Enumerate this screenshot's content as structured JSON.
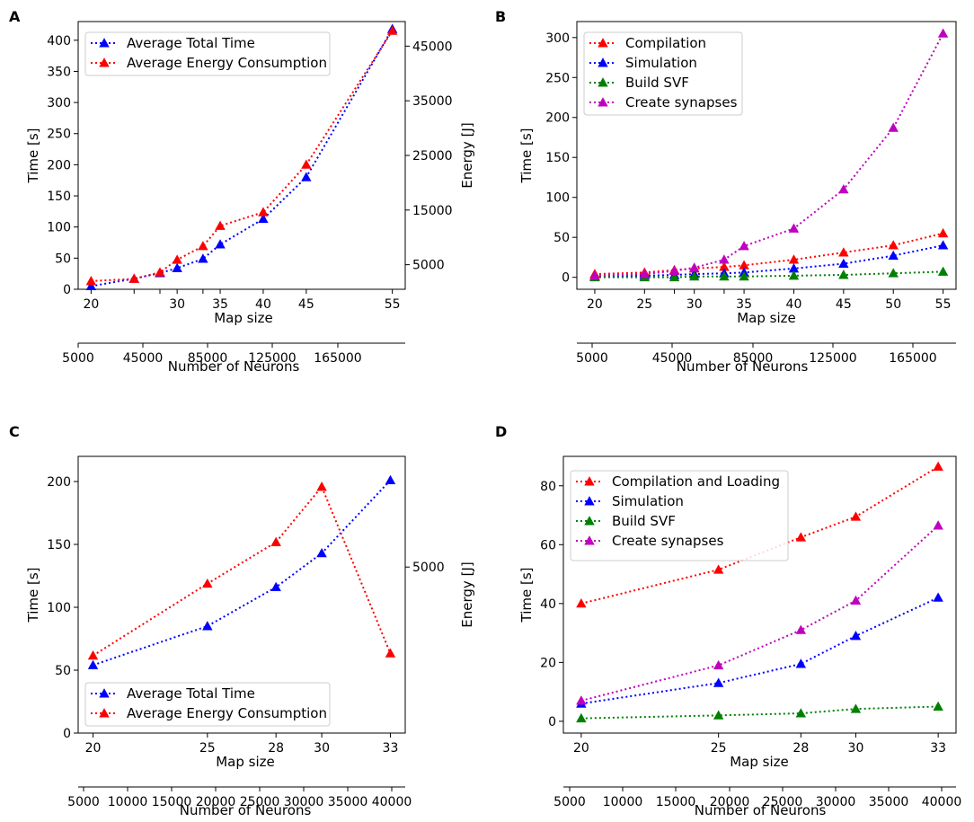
{
  "chart_data": [
    {
      "id": "A",
      "type": "line",
      "panel_label": "A",
      "xlabel": "Map size",
      "ylabel": "Time [s]",
      "y2label": "Energy [J]",
      "x2label": "Number of Neurons",
      "x": [
        20,
        25,
        28,
        30,
        33,
        35,
        40,
        45,
        55
      ],
      "xticks": [
        20,
        30,
        35,
        40,
        45,
        55
      ],
      "xlim": [
        18.5,
        56.5
      ],
      "ylim": [
        0,
        430
      ],
      "yticks": [
        0,
        50,
        100,
        150,
        200,
        250,
        300,
        350,
        400
      ],
      "y2lim": [
        500,
        49500
      ],
      "y2ticks": [
        5000,
        15000,
        25000,
        35000,
        45000
      ],
      "x2ticks": [
        "5000",
        "45000",
        "85000",
        "125000",
        "165000"
      ],
      "series": [
        {
          "name": "Average Total Time",
          "color": "#0000ff",
          "axis": "left",
          "values": [
            5,
            17,
            26,
            34,
            49,
            72,
            113,
            180,
            418
          ]
        },
        {
          "name": "Average Energy Consumption",
          "color": "#ff0000",
          "axis": "right",
          "values": [
            2000,
            2400,
            3600,
            5900,
            8400,
            12100,
            14600,
            23300,
            47800
          ]
        }
      ],
      "legend_loc": "upper-left"
    },
    {
      "id": "B",
      "type": "line",
      "panel_label": "B",
      "xlabel": "Map size",
      "ylabel": "Time [s]",
      "x2label": "Number of Neurons",
      "x": [
        20,
        25,
        28,
        30,
        33,
        35,
        40,
        45,
        50,
        55
      ],
      "xticks": [
        20,
        25,
        30,
        35,
        40,
        45,
        50,
        55
      ],
      "xlim": [
        18.2,
        56.3
      ],
      "ylim": [
        -15,
        320
      ],
      "yticks": [
        0,
        50,
        100,
        150,
        200,
        250,
        300
      ],
      "x2ticks": [
        "5000",
        "45000",
        "85000",
        "125000",
        "165000"
      ],
      "series": [
        {
          "name": "Compilation",
          "color": "#ff0000",
          "values": [
            4,
            6,
            9,
            11,
            13,
            15,
            22,
            31,
            40,
            55
          ]
        },
        {
          "name": "Simulation",
          "color": "#0000ff",
          "values": [
            1,
            2,
            3,
            4,
            5,
            6,
            11,
            17,
            27,
            40
          ]
        },
        {
          "name": "Build SVF",
          "color": "#008000",
          "values": [
            0,
            0,
            0,
            1,
            1,
            1,
            2,
            3,
            5,
            7
          ]
        },
        {
          "name": "Create synapses",
          "color": "#bf00bf",
          "values": [
            2,
            4,
            8,
            12,
            22,
            39,
            61,
            110,
            187,
            305
          ]
        }
      ],
      "legend_loc": "upper-left"
    },
    {
      "id": "C",
      "type": "line",
      "panel_label": "C",
      "xlabel": "Map size",
      "ylabel": "Time [s]",
      "y2label": "Energy [J]",
      "x2label": "Number of Neurons",
      "x": [
        20,
        25,
        28,
        30,
        33
      ],
      "xticks": [
        20,
        25,
        28,
        30,
        33
      ],
      "xlim": [
        19.35,
        33.65
      ],
      "ylim": [
        0,
        220
      ],
      "yticks": [
        0,
        50,
        100,
        150,
        200
      ],
      "y2lim": [
        2000,
        7000
      ],
      "y2ticks": [
        5000
      ],
      "x2ticks": [
        "5000",
        "10000",
        "15000",
        "20000",
        "25000",
        "30000",
        "35000",
        "40000"
      ],
      "series": [
        {
          "name": "Average Total Time",
          "color": "#0000ff",
          "axis": "left",
          "values": [
            54,
            85,
            116,
            143,
            201
          ]
        },
        {
          "name": "Average Energy Consumption",
          "color": "#ff0000",
          "axis": "right",
          "values": [
            3400,
            4700,
            5450,
            6450,
            3440
          ]
        }
      ],
      "legend_loc": "lower-left"
    },
    {
      "id": "D",
      "type": "line",
      "panel_label": "D",
      "xlabel": "Map size",
      "ylabel": "Time [s]",
      "x2label": "Number of Neurons",
      "x": [
        20,
        25,
        28,
        30,
        33
      ],
      "xticks": [
        20,
        25,
        28,
        30,
        33
      ],
      "xlim": [
        19.35,
        33.65
      ],
      "ylim": [
        -4,
        90
      ],
      "yticks": [
        0,
        20,
        40,
        60,
        80
      ],
      "x2ticks": [
        "5000",
        "10000",
        "15000",
        "20000",
        "25000",
        "30000",
        "35000",
        "40000"
      ],
      "series": [
        {
          "name": "Compilation and Loading",
          "color": "#ff0000",
          "values": [
            40,
            51.5,
            62.5,
            69.5,
            86.5
          ]
        },
        {
          "name": "Simulation",
          "color": "#0000ff",
          "values": [
            6,
            13,
            19.5,
            29,
            42
          ]
        },
        {
          "name": "Build SVF",
          "color": "#008000",
          "values": [
            1,
            2,
            2.7,
            4.2,
            5
          ]
        },
        {
          "name": "Create synapses",
          "color": "#bf00bf",
          "values": [
            7,
            19,
            31,
            41,
            66.5
          ]
        }
      ],
      "legend_loc": "upper-left"
    }
  ]
}
